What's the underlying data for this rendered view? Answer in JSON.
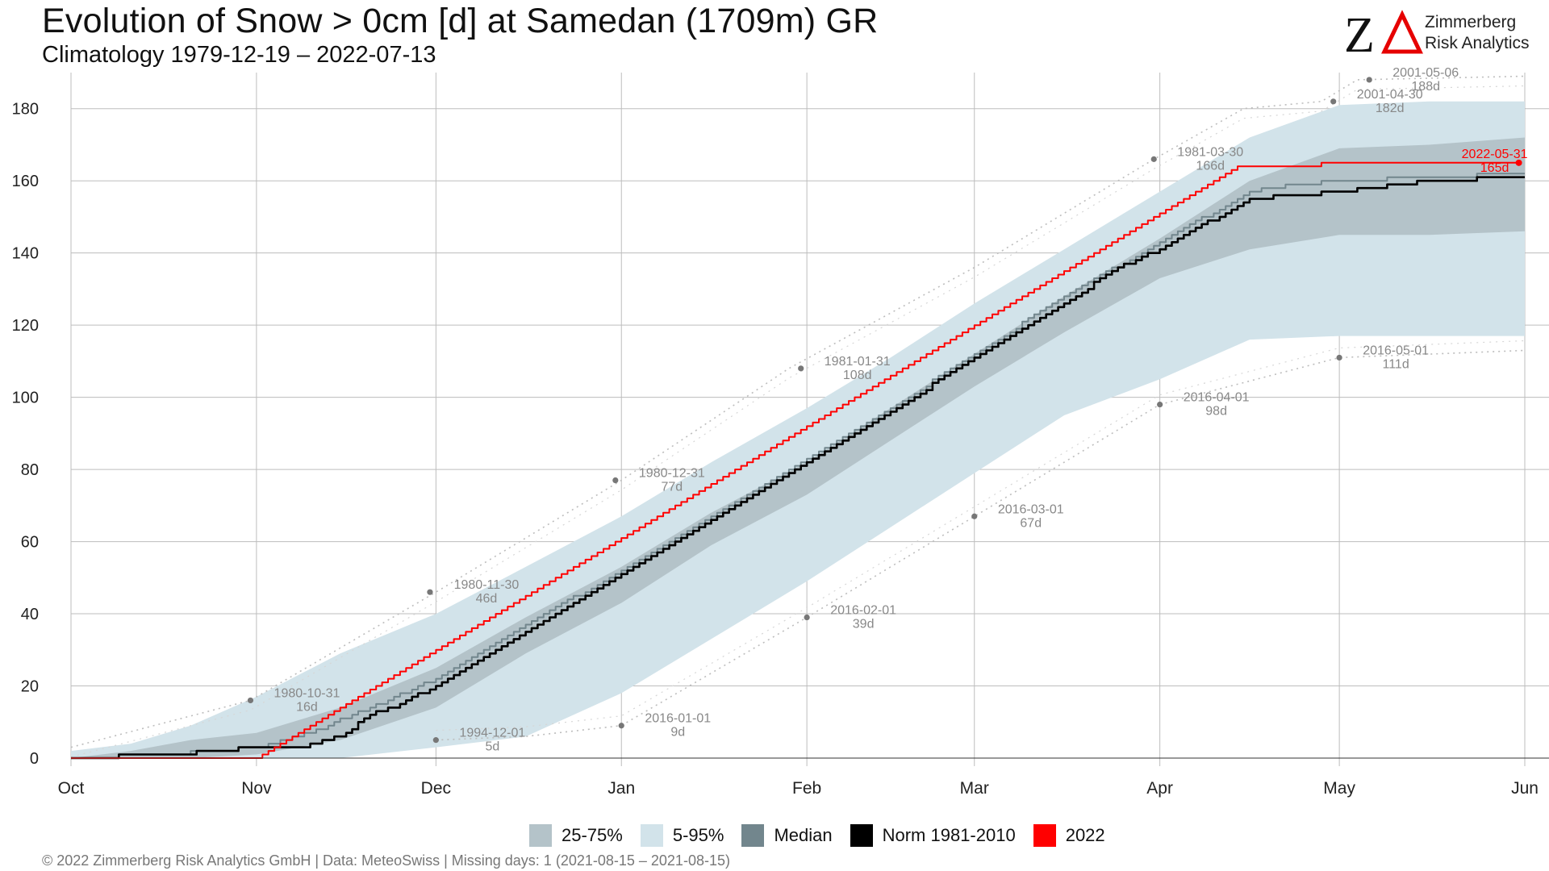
{
  "header": {
    "title": "Evolution of Snow > 0cm [d] at Samedan (1709m) GR",
    "subtitle": "Climatology 1979-12-19 – 2022-07-13"
  },
  "logo": {
    "mark": "ZΔ",
    "line1": "Zimmerberg",
    "line2": "Risk Analytics"
  },
  "legend": [
    {
      "label": "25-75%",
      "color": "#b4c3c9"
    },
    {
      "label": "5-95%",
      "color": "#d2e3ea"
    },
    {
      "label": "Median",
      "color": "#72868d"
    },
    {
      "label": "Norm 1981-2010",
      "color": "#000000"
    },
    {
      "label": "2022",
      "color": "#ff0000"
    }
  ],
  "footer": "©  2022 Zimmerberg Risk Analytics GmbH | Data: MeteoSwiss | Missing days: 1 (2021-08-15 – 2021-08-15)",
  "chart_data": {
    "type": "area",
    "xlabel": "",
    "ylabel": "",
    "x_unit": "days since Oct 1",
    "xlim": [
      0,
      243
    ],
    "ylim": [
      0,
      190
    ],
    "grid": true,
    "legend_position": "bottom",
    "x_ticks": [
      {
        "label": "Oct",
        "x": 0
      },
      {
        "label": "Nov",
        "x": 31
      },
      {
        "label": "Dec",
        "x": 61
      },
      {
        "label": "Jan",
        "x": 92
      },
      {
        "label": "Feb",
        "x": 123
      },
      {
        "label": "Mar",
        "x": 151
      },
      {
        "label": "Apr",
        "x": 182
      },
      {
        "label": "May",
        "x": 212
      },
      {
        "label": "Jun",
        "x": 243
      }
    ],
    "y_ticks": [
      0,
      20,
      40,
      60,
      80,
      100,
      120,
      140,
      160,
      180
    ],
    "bands": {
      "p5_p95": {
        "x": [
          0,
          10,
          20,
          31,
          45,
          61,
          76,
          92,
          107,
          123,
          137,
          151,
          166,
          182,
          197,
          212,
          227,
          243
        ],
        "lo": [
          0,
          0,
          0,
          0,
          0,
          3,
          6,
          18,
          33,
          49,
          64,
          79,
          95,
          105,
          116,
          117,
          117,
          117
        ],
        "hi": [
          2,
          4,
          9,
          17,
          29,
          40,
          53,
          67,
          82,
          97,
          111,
          126,
          141,
          157,
          172,
          181,
          182,
          182
        ]
      },
      "p25_p75": {
        "x": [
          0,
          10,
          20,
          31,
          45,
          61,
          76,
          92,
          107,
          123,
          137,
          151,
          166,
          182,
          197,
          212,
          227,
          243
        ],
        "lo": [
          0,
          0,
          0,
          1,
          5,
          14,
          29,
          43,
          59,
          73,
          88,
          103,
          118,
          133,
          141,
          145,
          145,
          146
        ],
        "hi": [
          0,
          2,
          5,
          7,
          14,
          25,
          39,
          53,
          68,
          82,
          97,
          112,
          128,
          144,
          160,
          169,
          170,
          172
        ]
      }
    },
    "series": [
      {
        "name": "Median",
        "color": "#72868d",
        "x": [
          0,
          15,
          25,
          31,
          40,
          50,
          61,
          76,
          92,
          107,
          123,
          137,
          151,
          166,
          182,
          197,
          205,
          212,
          227,
          243
        ],
        "y": [
          0,
          1,
          2,
          3,
          7,
          14,
          22,
          37,
          52,
          67,
          83,
          97,
          112,
          128,
          143,
          157,
          159,
          160,
          161,
          162
        ]
      },
      {
        "name": "Norm 1981-2010",
        "color": "#000000",
        "x": [
          0,
          16,
          25,
          31,
          38,
          45,
          50,
          55,
          61,
          76,
          92,
          107,
          123,
          137,
          151,
          166,
          175,
          182,
          189,
          192,
          197,
          212,
          227,
          243
        ],
        "y": [
          0,
          1,
          2,
          3,
          3,
          6,
          12,
          15,
          20,
          35,
          51,
          66,
          82,
          96,
          111,
          126,
          136,
          141,
          148,
          150,
          155,
          157,
          160,
          161
        ]
      },
      {
        "name": "2022",
        "color": "#ff0000",
        "x": [
          0,
          31,
          61,
          92,
          123,
          151,
          182,
          195,
          205,
          212,
          227,
          242
        ],
        "y": [
          0,
          0,
          30,
          61,
          92,
          120,
          151,
          164,
          164,
          165,
          165,
          165
        ]
      }
    ],
    "envelope_lines": {
      "max": {
        "x": [
          0,
          30,
          61,
          92,
          120,
          151,
          181,
          196,
          209,
          215,
          243
        ],
        "y": [
          3,
          16,
          46,
          77,
          108,
          136,
          166,
          180,
          182,
          188,
          189
        ]
      },
      "min": {
        "x": [
          61,
          76,
          92,
          123,
          151,
          182,
          212,
          243
        ],
        "y": [
          5,
          6,
          9,
          39,
          67,
          98,
          111,
          113
        ]
      }
    },
    "annotations": [
      {
        "x": 30,
        "y": 16,
        "date": "1980-10-31",
        "value": "16d",
        "kind": "max"
      },
      {
        "x": 60,
        "y": 46,
        "date": "1980-11-30",
        "value": "46d",
        "kind": "max"
      },
      {
        "x": 91,
        "y": 77,
        "date": "1980-12-31",
        "value": "77d",
        "kind": "max"
      },
      {
        "x": 122,
        "y": 108,
        "date": "1981-01-31",
        "value": "108d",
        "kind": "max"
      },
      {
        "x": 181,
        "y": 166,
        "date": "1981-03-30",
        "value": "166d",
        "kind": "max"
      },
      {
        "x": 211,
        "y": 182,
        "date": "2001-04-30",
        "value": "182d",
        "kind": "max"
      },
      {
        "x": 217,
        "y": 188,
        "date": "2001-05-06",
        "value": "188d",
        "kind": "max"
      },
      {
        "x": 61,
        "y": 5,
        "date": "1994-12-01",
        "value": "5d",
        "kind": "min"
      },
      {
        "x": 92,
        "y": 9,
        "date": "2016-01-01",
        "value": "9d",
        "kind": "min"
      },
      {
        "x": 123,
        "y": 39,
        "date": "2016-02-01",
        "value": "39d",
        "kind": "min"
      },
      {
        "x": 151,
        "y": 67,
        "date": "2016-03-01",
        "value": "67d",
        "kind": "min"
      },
      {
        "x": 182,
        "y": 98,
        "date": "2016-04-01",
        "value": "98d",
        "kind": "min"
      },
      {
        "x": 212,
        "y": 111,
        "date": "2016-05-01",
        "value": "111d",
        "kind": "min"
      },
      {
        "x": 242,
        "y": 165,
        "date": "2022-05-31",
        "value": "165d",
        "kind": "current"
      }
    ]
  }
}
